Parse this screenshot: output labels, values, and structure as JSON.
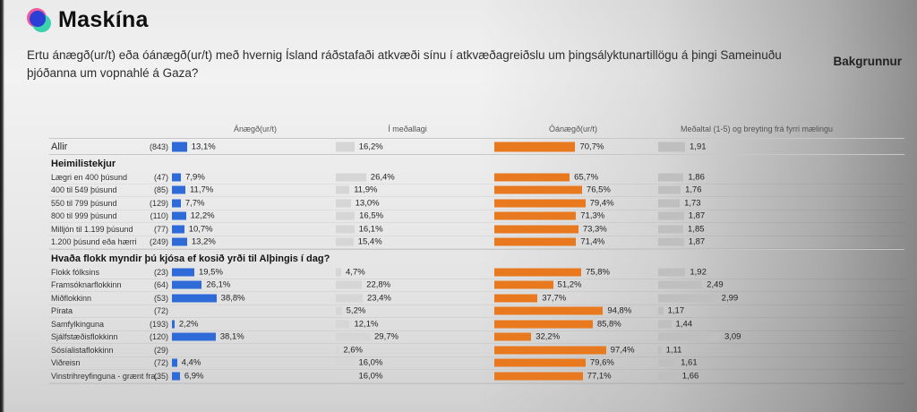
{
  "logo": {
    "text": "Maskína",
    "icon": "maskina-logo-icon",
    "colors": {
      "pink": "#ee5a9e",
      "teal": "#3bd2ae",
      "blue": "#2b3ed6"
    }
  },
  "header": {
    "question": "Ertu ánægð(ur/t) eða óánægð(ur/t) með hvernig Ísland ráðstafaði atkvæði sínu í atkvæðagreiðslu um þingsályktunartillögu á þingi Sameinuðu þjóðanna um vopnahlé á Gaza?",
    "nav_label": "Bakgrunnur"
  },
  "chart_data": {
    "type": "bar",
    "orientation": "horizontal",
    "title": "Ertu ánægð(ur/t) eða óánægð(ur/t) með hvernig Ísland ráðstafaði atkvæði sínu í atkvæðagreiðslu um þingsályktunartillögu á þingi Sameinuðu þjóðanna um vopnahlé á Gaza?",
    "columns": [
      "Ánægð(ur/t)",
      "Í meðallagi",
      "Óánægð(ur/t)",
      "Meðaltal (1-5) og breyting frá fyrri mælingu"
    ],
    "scales": {
      "percent_max": 100,
      "mean_min": 1,
      "mean_max": 5
    },
    "colors": {
      "satisfied": "#2e6bd9",
      "neutral": "#d6d6d6",
      "dissatisfied": "#e8791e",
      "mean": "#bfbfbf"
    },
    "groups": [
      {
        "header": null,
        "rows": [
          {
            "label": "Allir",
            "n": 843,
            "satisfied": 13.1,
            "neutral": 16.2,
            "dissatisfied": 70.7,
            "mean": 1.91,
            "emphasis": true
          }
        ]
      },
      {
        "header": "Heimilistekjur",
        "rows": [
          {
            "label": "Lægri en 400 þúsund",
            "n": 47,
            "satisfied": 7.9,
            "neutral": 26.4,
            "dissatisfied": 65.7,
            "mean": 1.86
          },
          {
            "label": "400 til 549 þúsund",
            "n": 85,
            "satisfied": 11.7,
            "neutral": 11.9,
            "dissatisfied": 76.5,
            "mean": 1.76
          },
          {
            "label": "550 til 799 þúsund",
            "n": 129,
            "satisfied": 7.7,
            "neutral": 13.0,
            "dissatisfied": 79.4,
            "mean": 1.73
          },
          {
            "label": "800 til 999 þúsund",
            "n": 110,
            "satisfied": 12.2,
            "neutral": 16.5,
            "dissatisfied": 71.3,
            "mean": 1.87
          },
          {
            "label": "Milljón til 1.199 þúsund",
            "n": 77,
            "satisfied": 10.7,
            "neutral": 16.1,
            "dissatisfied": 73.3,
            "mean": 1.85
          },
          {
            "label": "1.200 þúsund eða hærri",
            "n": 249,
            "satisfied": 13.2,
            "neutral": 15.4,
            "dissatisfied": 71.4,
            "mean": 1.87
          }
        ]
      },
      {
        "header": "Hvaða flokk myndir þú kjósa ef kosið yrði til Alþingis í dag?",
        "rows": [
          {
            "label": "Flokk fólksins",
            "n": 23,
            "satisfied": 19.5,
            "neutral": 4.7,
            "dissatisfied": 75.8,
            "mean": 1.92
          },
          {
            "label": "Framsóknarflokkinn",
            "n": 64,
            "satisfied": 26.1,
            "neutral": 22.8,
            "dissatisfied": 51.2,
            "mean": 2.49
          },
          {
            "label": "Miðflokkinn",
            "n": 53,
            "satisfied": 38.8,
            "neutral": 23.4,
            "dissatisfied": 37.7,
            "mean": 2.99
          },
          {
            "label": "Pírata",
            "n": 72,
            "satisfied": null,
            "neutral": 5.2,
            "dissatisfied": 94.8,
            "mean": 1.17
          },
          {
            "label": "Samfylkinguna",
            "n": 193,
            "satisfied": 2.2,
            "neutral": 12.1,
            "dissatisfied": 85.8,
            "mean": 1.44
          },
          {
            "label": "Sjálfstæðisflokkinn",
            "n": 120,
            "satisfied": 38.1,
            "neutral": 29.7,
            "dissatisfied": 32.2,
            "mean": 3.09
          },
          {
            "label": "Sósíalistaflokkinn",
            "n": 29,
            "satisfied": null,
            "neutral": 2.6,
            "dissatisfied": 97.4,
            "mean": 1.11
          },
          {
            "label": "Viðreisn",
            "n": 72,
            "satisfied": 4.4,
            "neutral": 16.0,
            "dissatisfied": 79.6,
            "mean": 1.61
          },
          {
            "label": "Vinstrihreyfinguna - grænt fra..",
            "n": 35,
            "satisfied": 6.9,
            "neutral": 16.0,
            "dissatisfied": 77.1,
            "mean": 1.66
          }
        ]
      }
    ]
  }
}
